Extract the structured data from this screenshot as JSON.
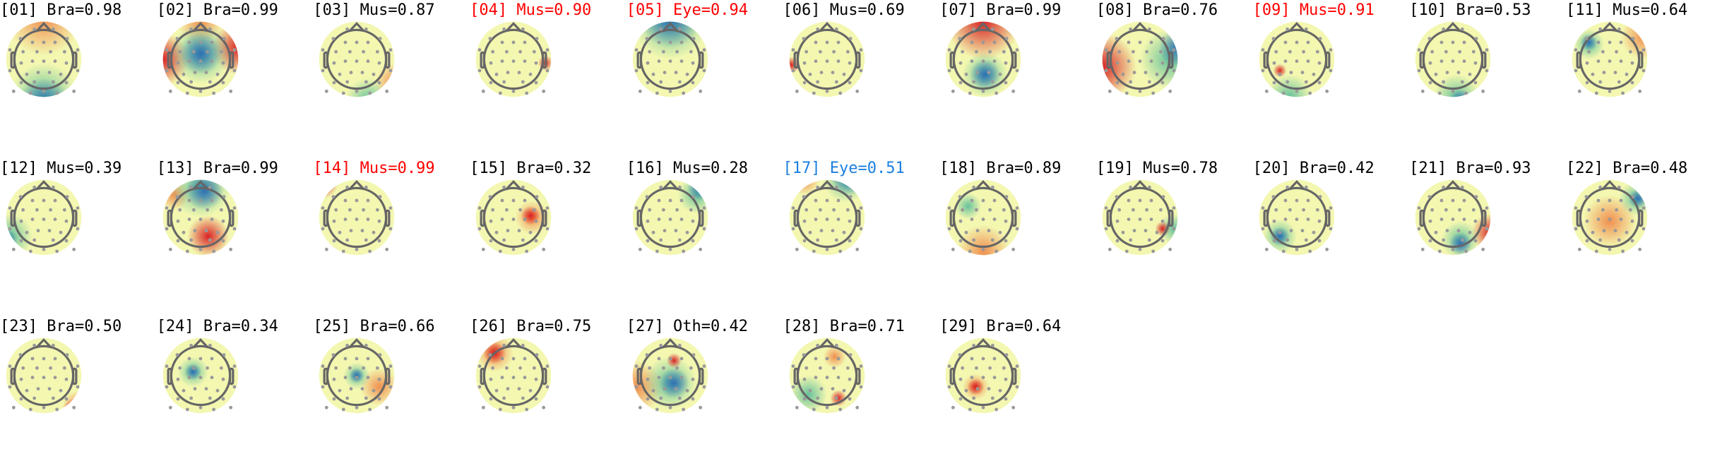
{
  "colors": {
    "default": "#000000",
    "flagged": "#ff0000",
    "eye_kept": "#1a7fe0"
  },
  "components": [
    {
      "label": "[01] Bra=0.98",
      "color": "default"
    },
    {
      "label": "[02] Bra=0.99",
      "color": "default"
    },
    {
      "label": "[03] Mus=0.87",
      "color": "default"
    },
    {
      "label": "[04] Mus=0.90",
      "color": "flagged"
    },
    {
      "label": "[05] Eye=0.94",
      "color": "flagged"
    },
    {
      "label": "[06] Mus=0.69",
      "color": "default"
    },
    {
      "label": "[07] Bra=0.99",
      "color": "default"
    },
    {
      "label": "[08] Bra=0.76",
      "color": "default"
    },
    {
      "label": "[09] Mus=0.91",
      "color": "flagged"
    },
    {
      "label": "[10] Bra=0.53",
      "color": "default"
    },
    {
      "label": "[11] Mus=0.64",
      "color": "default"
    },
    {
      "label": "[12] Mus=0.39",
      "color": "default"
    },
    {
      "label": "[13] Bra=0.99",
      "color": "default"
    },
    {
      "label": "[14] Mus=0.99",
      "color": "flagged"
    },
    {
      "label": "[15] Bra=0.32",
      "color": "default"
    },
    {
      "label": "[16] Mus=0.28",
      "color": "default"
    },
    {
      "label": "[17] Eye=0.51",
      "color": "eye_kept"
    },
    {
      "label": "[18] Bra=0.89",
      "color": "default"
    },
    {
      "label": "[19] Mus=0.78",
      "color": "default"
    },
    {
      "label": "[20] Bra=0.42",
      "color": "default"
    },
    {
      "label": "[21] Bra=0.93",
      "color": "default"
    },
    {
      "label": "[22] Bra=0.48",
      "color": "default"
    },
    {
      "label": "[23] Bra=0.50",
      "color": "default"
    },
    {
      "label": "[24] Bra=0.34",
      "color": "default"
    },
    {
      "label": "[25] Bra=0.66",
      "color": "default"
    },
    {
      "label": "[26] Bra=0.75",
      "color": "default"
    },
    {
      "label": "[27] Oth=0.42",
      "color": "default"
    },
    {
      "label": "[28] Bra=0.71",
      "color": "default"
    },
    {
      "label": "[29] Bra=0.64",
      "color": "default"
    }
  ]
}
